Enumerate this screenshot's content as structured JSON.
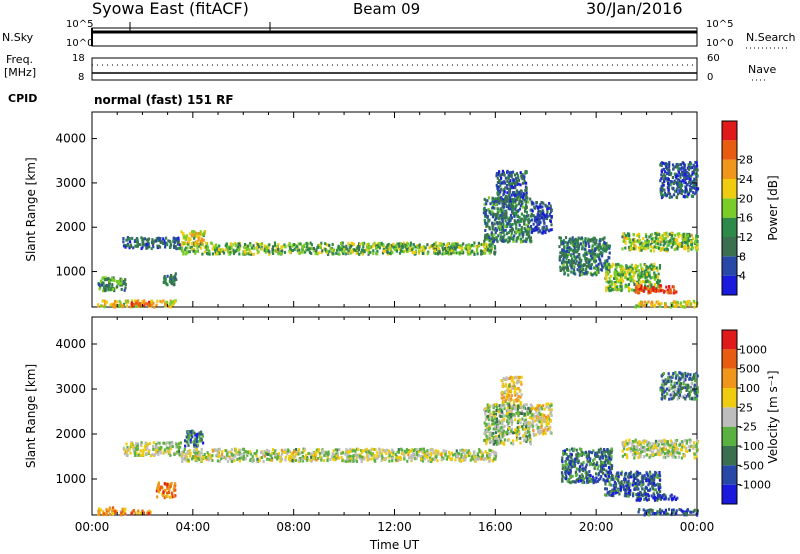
{
  "header": {
    "title": "Syowa East (fitACF)",
    "beam": "Beam 09",
    "date": "30/Jan/2016"
  },
  "status_panels": {
    "nsky_label": "N.Sky",
    "nsearch_label": "N.Search",
    "noise_ticks_left": [
      "10^5",
      "10^0"
    ],
    "noise_ticks_right": [
      "10^5",
      "10^0"
    ],
    "freq_label": "Freq.",
    "freq_unit": "[MHz]",
    "freq_ticks": [
      "18",
      "8"
    ],
    "nave_label": "Nave",
    "nave_ticks": [
      "60",
      "0"
    ],
    "cpid_label": "CPID",
    "cpid_value": "normal (fast) 151 RF"
  },
  "chart_data": [
    {
      "type": "heatmap",
      "name": "power",
      "ylabel": "Slant Range [km]",
      "ylim": [
        200,
        4600
      ],
      "yticks": [
        1000,
        2000,
        3000,
        4000
      ],
      "xlim": [
        0,
        24
      ],
      "colorbar": {
        "label": "Power [dB]",
        "range": [
          0,
          32
        ],
        "ticks": [
          "4",
          "8",
          "12",
          "16",
          "20",
          "24",
          "28"
        ],
        "colors": [
          "#1a1adc",
          "#2848a8",
          "#3a7050",
          "#2e8a48",
          "#7acc28",
          "#f0cc10",
          "#f0961a",
          "#e85c12",
          "#e01a1a"
        ]
      },
      "regions": [
        {
          "x0": 1.2,
          "x1": 3.5,
          "y0": 1550,
          "y1": 1800,
          "level": 0.25
        },
        {
          "x0": 3.5,
          "x1": 16.0,
          "y0": 1420,
          "y1": 1680,
          "level": 0.45
        },
        {
          "x0": 3.5,
          "x1": 4.5,
          "y0": 1650,
          "y1": 1950,
          "level": 0.6
        },
        {
          "x0": 15.5,
          "x1": 17.4,
          "y0": 1700,
          "y1": 2700,
          "level": 0.3
        },
        {
          "x0": 16.0,
          "x1": 17.2,
          "y0": 2600,
          "y1": 3300,
          "level": 0.2
        },
        {
          "x0": 17.4,
          "x1": 18.2,
          "y0": 1900,
          "y1": 2600,
          "level": 0.15
        },
        {
          "x0": 18.5,
          "x1": 20.5,
          "y0": 950,
          "y1": 1800,
          "level": 0.3
        },
        {
          "x0": 20.3,
          "x1": 22.5,
          "y0": 600,
          "y1": 1200,
          "level": 0.5
        },
        {
          "x0": 21.5,
          "x1": 23.2,
          "y0": 550,
          "y1": 720,
          "level": 0.85
        },
        {
          "x0": 21.0,
          "x1": 24.0,
          "y0": 1500,
          "y1": 1900,
          "level": 0.5
        },
        {
          "x0": 22.5,
          "x1": 24.0,
          "y0": 2700,
          "y1": 3500,
          "level": 0.2
        },
        {
          "x0": 0.2,
          "x1": 3.3,
          "y0": 230,
          "y1": 380,
          "level": 0.6
        },
        {
          "x0": 1.5,
          "x1": 2.3,
          "y0": 260,
          "y1": 340,
          "level": 0.9
        },
        {
          "x0": 0.2,
          "x1": 1.3,
          "y0": 600,
          "y1": 900,
          "level": 0.35
        },
        {
          "x0": 2.8,
          "x1": 3.3,
          "y0": 700,
          "y1": 1000,
          "level": 0.3
        },
        {
          "x0": 21.5,
          "x1": 24.0,
          "y0": 230,
          "y1": 360,
          "level": 0.6
        }
      ]
    },
    {
      "type": "heatmap",
      "name": "velocity",
      "ylabel": "Slant Range [km]",
      "ylim": [
        200,
        4600
      ],
      "yticks": [
        1000,
        2000,
        3000,
        4000
      ],
      "xlabel": "Time UT",
      "xlim": [
        0,
        24
      ],
      "xticks": [
        "00:00",
        "04:00",
        "08:00",
        "12:00",
        "16:00",
        "20:00",
        "00:00"
      ],
      "colorbar": {
        "label": "Velocity [m s⁻¹]",
        "ticks": [
          "1000",
          "500",
          "100",
          "25",
          "-25",
          "-100",
          "-500",
          "-1000"
        ],
        "colors": [
          "#1a1adc",
          "#2848a8",
          "#3a7050",
          "#5ab040",
          "#bdbdbd",
          "#f0cc10",
          "#f0961a",
          "#e85c12",
          "#e01a1a"
        ]
      },
      "regions": [
        {
          "x0": 1.2,
          "x1": 3.5,
          "y0": 1550,
          "y1": 1850,
          "level": 0.5
        },
        {
          "x0": 3.5,
          "x1": 16.0,
          "y0": 1420,
          "y1": 1700,
          "level": 0.5
        },
        {
          "x0": 3.6,
          "x1": 4.4,
          "y0": 1750,
          "y1": 2100,
          "level": 0.25
        },
        {
          "x0": 15.5,
          "x1": 17.4,
          "y0": 1800,
          "y1": 2700,
          "level": 0.45
        },
        {
          "x0": 16.2,
          "x1": 17.0,
          "y0": 2700,
          "y1": 3300,
          "level": 0.6
        },
        {
          "x0": 17.4,
          "x1": 18.2,
          "y0": 2000,
          "y1": 2700,
          "level": 0.55
        },
        {
          "x0": 18.6,
          "x1": 20.6,
          "y0": 950,
          "y1": 1700,
          "level": 0.25
        },
        {
          "x0": 20.3,
          "x1": 22.5,
          "y0": 650,
          "y1": 1200,
          "level": 0.2
        },
        {
          "x0": 21.5,
          "x1": 23.2,
          "y0": 560,
          "y1": 700,
          "level": 0.15
        },
        {
          "x0": 21.0,
          "x1": 24.0,
          "y0": 1500,
          "y1": 1900,
          "level": 0.5
        },
        {
          "x0": 22.5,
          "x1": 24.0,
          "y0": 2800,
          "y1": 3400,
          "level": 0.3
        },
        {
          "x0": 0.2,
          "x1": 1.3,
          "y0": 230,
          "y1": 400,
          "level": 0.7
        },
        {
          "x0": 1.5,
          "x1": 2.3,
          "y0": 260,
          "y1": 340,
          "level": 0.75
        },
        {
          "x0": 2.5,
          "x1": 3.3,
          "y0": 600,
          "y1": 950,
          "level": 0.75
        },
        {
          "x0": 21.5,
          "x1": 24.0,
          "y0": 230,
          "y1": 360,
          "level": 0.2
        }
      ]
    }
  ]
}
